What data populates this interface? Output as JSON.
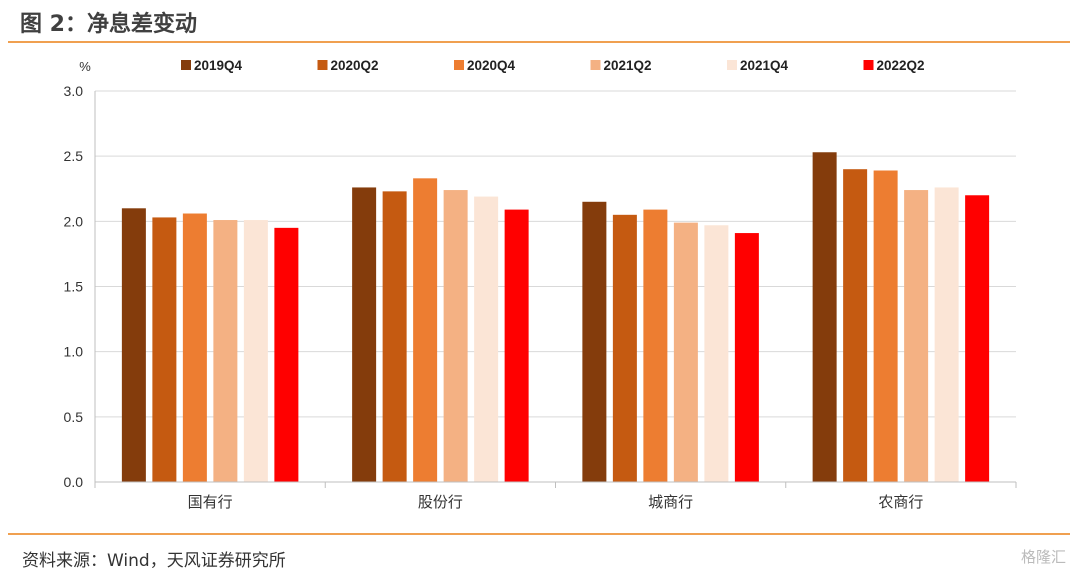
{
  "header": {
    "title": "图 2：净息差变动"
  },
  "footer": {
    "source": "资料来源：Wind，天风证券研究所",
    "watermark": "格隆汇"
  },
  "chart_data": {
    "type": "bar",
    "title": "",
    "xlabel": "",
    "ylabel": "%",
    "ylim": [
      0,
      3.0
    ],
    "yticks": [
      "0.0",
      "0.5",
      "1.0",
      "1.5",
      "2.0",
      "2.5",
      "3.0"
    ],
    "grid": true,
    "legend": "top",
    "categories": [
      "国有行",
      "股份行",
      "城商行",
      "农商行"
    ],
    "series": [
      {
        "name": "2019Q4",
        "color": "#843c0c",
        "values": [
          2.1,
          2.26,
          2.15,
          2.53
        ]
      },
      {
        "name": "2020Q2",
        "color": "#c55a11",
        "values": [
          2.03,
          2.23,
          2.05,
          2.4
        ]
      },
      {
        "name": "2020Q4",
        "color": "#ed7d31",
        "values": [
          2.06,
          2.33,
          2.09,
          2.39
        ]
      },
      {
        "name": "2021Q2",
        "color": "#f4b183",
        "values": [
          2.01,
          2.24,
          1.99,
          2.24
        ]
      },
      {
        "name": "2021Q4",
        "color": "#fbe5d6",
        "values": [
          2.01,
          2.19,
          1.97,
          2.26
        ]
      },
      {
        "name": "2022Q2",
        "color": "#ff0000",
        "values": [
          1.95,
          2.09,
          1.91,
          2.2
        ]
      }
    ]
  }
}
